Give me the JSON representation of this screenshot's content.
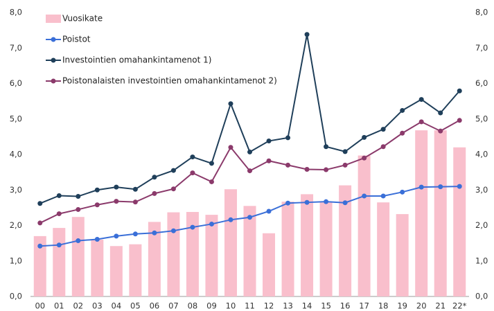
{
  "chart_data": {
    "type": "combo",
    "categories": [
      "00",
      "01",
      "02",
      "03",
      "04",
      "05",
      "06",
      "07",
      "08",
      "09",
      "10",
      "11",
      "12",
      "13",
      "14",
      "15",
      "16",
      "17",
      "18",
      "19",
      "20",
      "21",
      "22*"
    ],
    "series": [
      {
        "name": "Vuosikate",
        "type": "bar",
        "color": "#f9bfcc",
        "values": [
          1.7,
          1.93,
          2.24,
          1.6,
          1.42,
          1.47,
          2.1,
          2.37,
          2.38,
          2.3,
          3.02,
          2.55,
          1.78,
          2.67,
          2.88,
          2.65,
          3.13,
          3.97,
          2.65,
          2.32,
          4.68,
          4.68,
          4.2
        ]
      },
      {
        "name": "Poistot",
        "type": "line",
        "color": "#3a6fd8",
        "values": [
          1.42,
          1.45,
          1.57,
          1.61,
          1.7,
          1.76,
          1.79,
          1.85,
          1.95,
          2.04,
          2.16,
          2.23,
          2.4,
          2.63,
          2.65,
          2.67,
          2.64,
          2.83,
          2.83,
          2.94,
          3.08,
          3.09,
          3.1
        ]
      },
      {
        "name": "Investointien omahankintamenot 1)",
        "type": "line",
        "color": "#1f3f5a",
        "values": [
          2.62,
          2.84,
          2.82,
          3.0,
          3.08,
          3.02,
          3.36,
          3.55,
          3.93,
          3.75,
          5.43,
          4.07,
          4.38,
          4.47,
          7.38,
          4.22,
          4.08,
          4.48,
          4.71,
          5.24,
          5.55,
          5.17,
          5.79
        ]
      },
      {
        "name": "Poistonalaisten investointien omahankintamenot 2)",
        "type": "line",
        "color": "#8b3a6b",
        "values": [
          2.07,
          2.33,
          2.45,
          2.58,
          2.68,
          2.66,
          2.9,
          3.03,
          3.48,
          3.23,
          4.2,
          3.54,
          3.82,
          3.7,
          3.58,
          3.57,
          3.7,
          3.9,
          4.22,
          4.6,
          4.92,
          4.66,
          4.96
        ]
      }
    ],
    "ylim": [
      0,
      8
    ],
    "yticks": [
      {
        "value": 0,
        "label": "0,0"
      },
      {
        "value": 1,
        "label": "1,0"
      },
      {
        "value": 2,
        "label": "2,0"
      },
      {
        "value": 3,
        "label": "3,0"
      },
      {
        "value": 4,
        "label": "4,0"
      },
      {
        "value": 5,
        "label": "5,0"
      },
      {
        "value": 6,
        "label": "6,0"
      },
      {
        "value": 7,
        "label": "7,0"
      },
      {
        "value": 8,
        "label": "8,0"
      }
    ],
    "y2lim": [
      0,
      8
    ],
    "y2ticks": [
      {
        "value": 0,
        "label": "0,0"
      },
      {
        "value": 1,
        "label": "1,0"
      },
      {
        "value": 2,
        "label": "2,0"
      },
      {
        "value": 3,
        "label": "3,0"
      },
      {
        "value": 4,
        "label": "4,0"
      },
      {
        "value": 5,
        "label": "5,0"
      },
      {
        "value": 6,
        "label": "6,0"
      },
      {
        "value": 7,
        "label": "7,0"
      },
      {
        "value": 8,
        "label": "8,0"
      }
    ],
    "grid": false,
    "legend": "top-left"
  }
}
